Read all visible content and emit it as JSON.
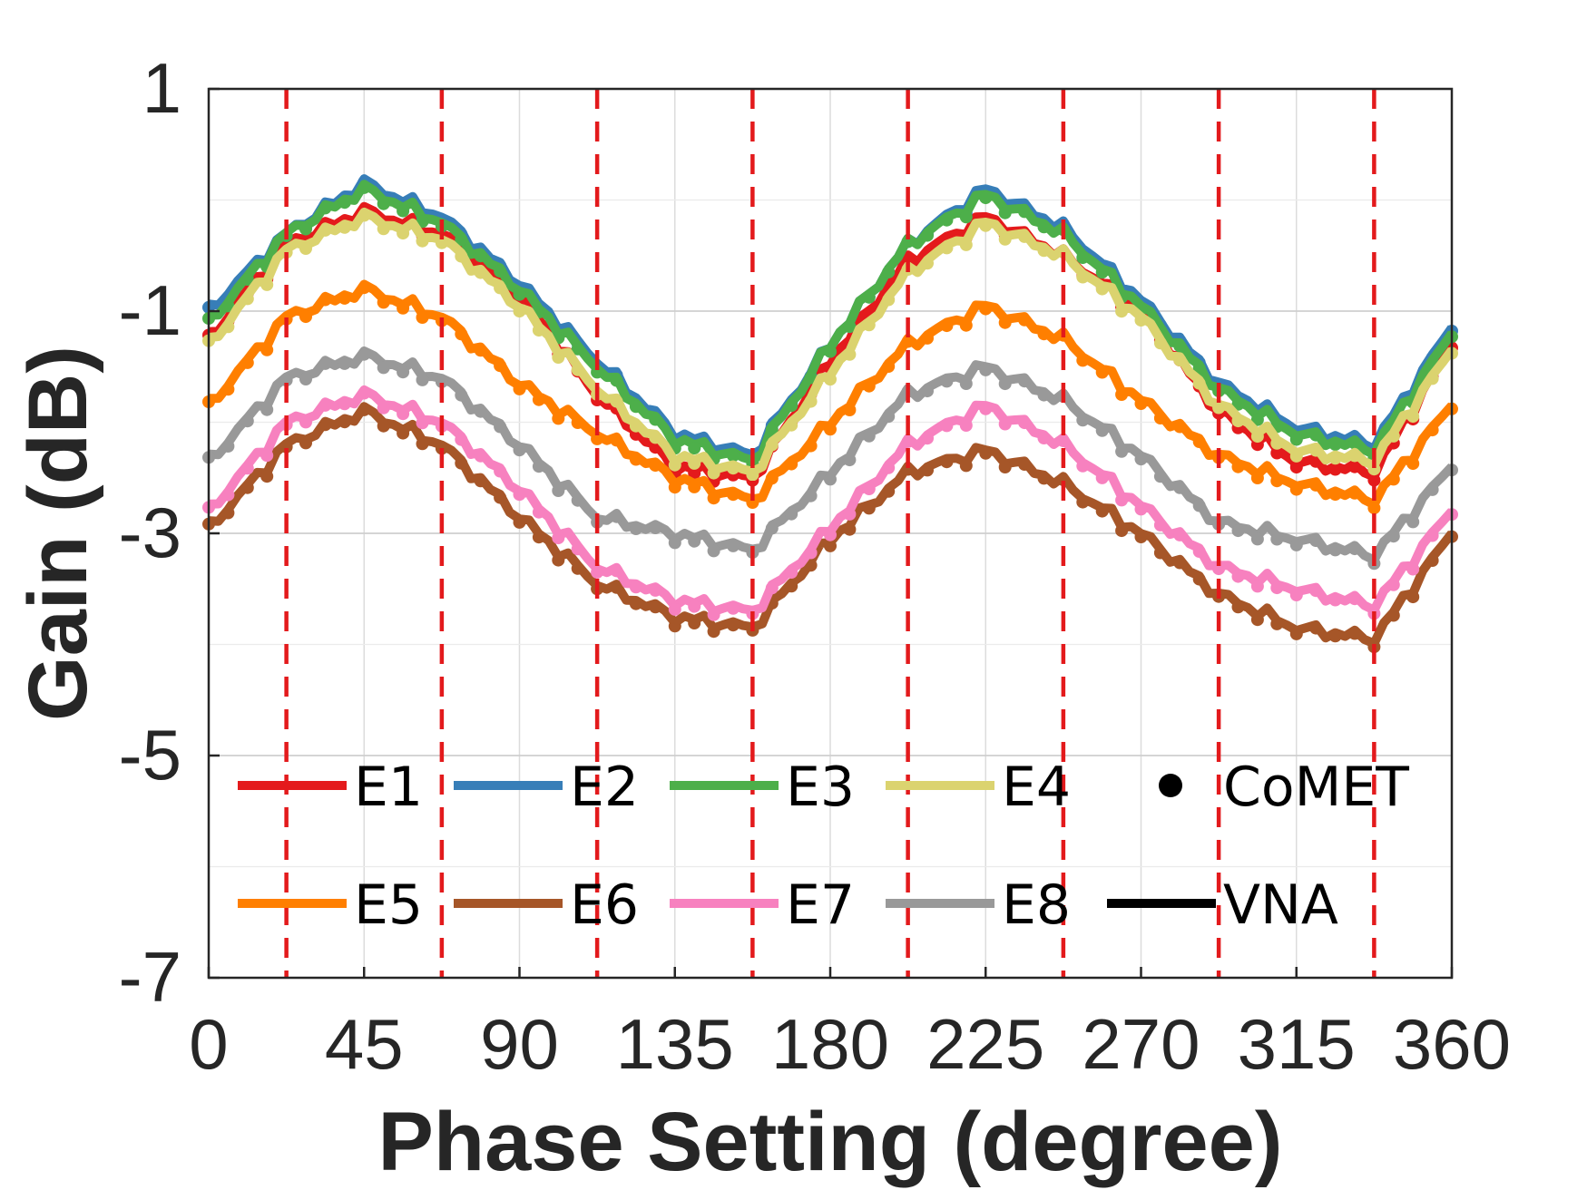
{
  "chart_data": {
    "type": "line",
    "title": "",
    "xlabel": "Phase Setting (degree)",
    "ylabel": "Gain (dB)",
    "xlim": [
      0,
      360
    ],
    "ylim": [
      -7,
      1
    ],
    "grid": true,
    "x_ticks": [
      "0",
      "45",
      "90",
      "135",
      "180",
      "225",
      "270",
      "315",
      "360"
    ],
    "y_ticks": [
      "1",
      "-1",
      "-3",
      "-5",
      "-7"
    ],
    "x_tick_values": [
      0,
      45,
      90,
      135,
      180,
      225,
      270,
      315,
      360
    ],
    "y_tick_values": [
      1,
      -1,
      -3,
      -5,
      -7
    ],
    "minor_y_values": [
      0,
      -2,
      -4,
      -6
    ],
    "vertical_markers": {
      "color": "#e31a1c",
      "style": "dashed",
      "x": [
        22.5,
        67.5,
        112.5,
        157.5,
        202.5,
        247.5,
        292.5,
        337.5
      ]
    },
    "x": [
      0,
      22.5,
      45,
      67.5,
      90,
      112.5,
      135,
      157.5,
      180,
      202.5,
      225,
      247.5,
      270,
      292.5,
      315,
      337.5,
      360
    ],
    "series": [
      {
        "name": "E1",
        "color": "#e41a1c",
        "values": [
          -1.25,
          -0.4,
          -0.1,
          -0.3,
          -0.85,
          -1.75,
          -2.4,
          -2.5,
          -1.45,
          -0.55,
          -0.15,
          -0.5,
          -1.0,
          -1.9,
          -2.35,
          -2.45,
          -1.3
        ]
      },
      {
        "name": "E2",
        "color": "#377eb8",
        "values": [
          -1.0,
          -0.3,
          0.15,
          -0.15,
          -0.75,
          -1.45,
          -2.1,
          -2.3,
          -1.3,
          -0.4,
          0.1,
          -0.25,
          -0.9,
          -1.65,
          -2.05,
          -2.2,
          -1.15
        ]
      },
      {
        "name": "E3",
        "color": "#4daf4a",
        "values": [
          -1.1,
          -0.3,
          0.1,
          -0.2,
          -0.8,
          -1.5,
          -2.15,
          -2.35,
          -1.3,
          -0.4,
          0.05,
          -0.3,
          -0.95,
          -1.7,
          -2.1,
          -2.25,
          -1.2
        ]
      },
      {
        "name": "E4",
        "color": "#dbd36f",
        "values": [
          -1.3,
          -0.45,
          -0.15,
          -0.35,
          -0.95,
          -1.7,
          -2.3,
          -2.45,
          -1.55,
          -0.65,
          -0.2,
          -0.5,
          -1.05,
          -1.85,
          -2.25,
          -2.35,
          -1.35
        ]
      },
      {
        "name": "E5",
        "color": "#ff7f00",
        "values": [
          -1.85,
          -1.05,
          -0.8,
          -1.05,
          -1.65,
          -2.1,
          -2.5,
          -2.7,
          -2.0,
          -1.3,
          -0.95,
          -1.25,
          -1.8,
          -2.3,
          -2.55,
          -2.7,
          -1.85
        ]
      },
      {
        "name": "E6",
        "color": "#a65628",
        "values": [
          -2.95,
          -2.2,
          -1.9,
          -2.2,
          -2.85,
          -3.45,
          -3.75,
          -3.85,
          -3.05,
          -2.45,
          -2.25,
          -2.55,
          -3.0,
          -3.55,
          -3.85,
          -3.95,
          -3.0
        ]
      },
      {
        "name": "E7",
        "color": "#f781bf",
        "values": [
          -2.8,
          -2.0,
          -1.75,
          -2.0,
          -2.6,
          -3.3,
          -3.6,
          -3.7,
          -2.95,
          -2.2,
          -1.85,
          -2.2,
          -2.75,
          -3.3,
          -3.5,
          -3.65,
          -2.8
        ]
      },
      {
        "name": "E8",
        "color": "#999999",
        "values": [
          -2.35,
          -1.6,
          -1.4,
          -1.6,
          -2.2,
          -2.85,
          -3.0,
          -3.15,
          -2.45,
          -1.75,
          -1.5,
          -1.8,
          -2.3,
          -2.9,
          -3.05,
          -3.2,
          -2.4
        ]
      }
    ],
    "legend": {
      "placement": "lower-center inside plot",
      "entries": [
        {
          "label": "E1",
          "kind": "line",
          "color": "#e41a1c"
        },
        {
          "label": "E2",
          "kind": "line",
          "color": "#377eb8"
        },
        {
          "label": "E3",
          "kind": "line",
          "color": "#4daf4a"
        },
        {
          "label": "E4",
          "kind": "line",
          "color": "#dbd36f"
        },
        {
          "label": "CoMET",
          "kind": "marker",
          "color": "#000000"
        },
        {
          "label": "E5",
          "kind": "line",
          "color": "#ff7f00"
        },
        {
          "label": "E6",
          "kind": "line",
          "color": "#a65628"
        },
        {
          "label": "E7",
          "kind": "line",
          "color": "#f781bf"
        },
        {
          "label": "E8",
          "kind": "line",
          "color": "#999999"
        },
        {
          "label": "VNA",
          "kind": "line",
          "color": "#000000"
        }
      ]
    }
  }
}
